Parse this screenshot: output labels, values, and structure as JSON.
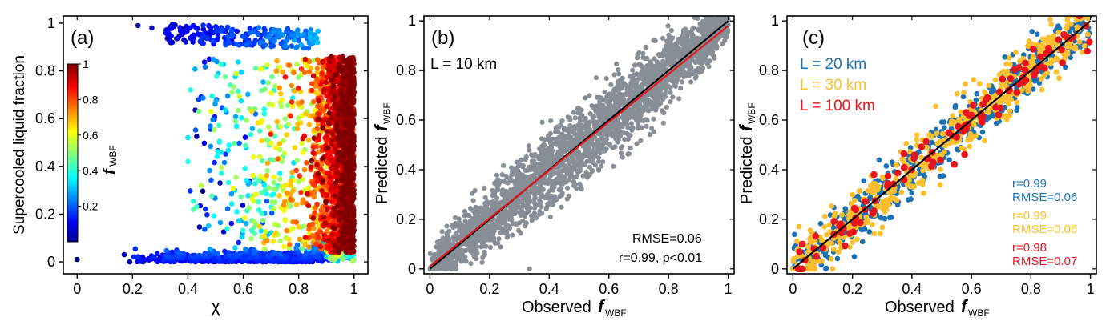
{
  "chart_data": [
    {
      "type": "scatter",
      "panel_label": "(a)",
      "xlabel": "χ",
      "ylabel": "Supercooled liquid fraction",
      "xlim": [
        -0.05,
        1.05
      ],
      "ylim": [
        -0.05,
        1.03
      ],
      "xticks": [
        "0",
        "0.2",
        "0.4",
        "0.6",
        "0.8",
        "1"
      ],
      "yticks": [
        "0",
        "0.2",
        "0.4",
        "0.6",
        "0.8",
        "1"
      ],
      "color_variable": "f_WBF",
      "colorbar": {
        "label": "f",
        "label_sub": "WBF",
        "ticks": [
          "0.2",
          "0.4",
          "0.6",
          "0.8",
          "1"
        ],
        "range": [
          0,
          1
        ],
        "colormap": "jet"
      },
      "point_count_approx": 6000,
      "description_points": [
        {
          "x": 0.0,
          "y": 0.01,
          "c": 0.0
        },
        {
          "x": 0.2,
          "y": 0.0,
          "c": 0.05
        },
        {
          "x": 0.33,
          "y": 1.0,
          "c": 0.05
        },
        {
          "x": 0.4,
          "y": 0.52,
          "c": 0.4
        },
        {
          "x": 0.5,
          "y": 0.99,
          "c": 0.1
        },
        {
          "x": 0.6,
          "y": 0.3,
          "c": 0.5
        },
        {
          "x": 0.8,
          "y": 0.6,
          "c": 0.85
        },
        {
          "x": 0.95,
          "y": 0.7,
          "c": 0.95
        },
        {
          "x": 1.0,
          "y": 0.4,
          "c": 1.0
        }
      ]
    },
    {
      "type": "scatter",
      "panel_label": "(b)",
      "annotation": "L = 10 km",
      "xlabel": "Observed",
      "ylabel": "Predicted",
      "label_symbol": "f",
      "label_sub": "WBF",
      "xlim": [
        -0.02,
        1.02
      ],
      "ylim": [
        -0.02,
        1.02
      ],
      "xticks": [
        "0",
        "0.2",
        "0.4",
        "0.6",
        "0.8",
        "1"
      ],
      "yticks": [
        "0",
        "0.2",
        "0.4",
        "0.6",
        "0.8",
        "1"
      ],
      "series": [
        {
          "color": "#888e96",
          "x_range": [
            0,
            1
          ],
          "spread_sd": 0.065
        }
      ],
      "lines": [
        {
          "name": "1:1",
          "color": "#000000",
          "x": [
            0,
            1
          ],
          "y": [
            0,
            1
          ]
        },
        {
          "name": "fit",
          "color": "#e8141b",
          "x": [
            0,
            1
          ],
          "y": [
            0.01,
            0.98
          ]
        }
      ],
      "stats": [
        "RMSE=0.06",
        "r=0.99, p<0.01"
      ]
    },
    {
      "type": "scatter",
      "panel_label": "(c)",
      "xlabel": "Observed",
      "ylabel": "Predicted",
      "label_symbol": "f",
      "label_sub": "WBF",
      "xlim": [
        -0.02,
        1.02
      ],
      "ylim": [
        -0.02,
        1.02
      ],
      "xticks": [
        "0",
        "0.2",
        "0.4",
        "0.6",
        "0.8",
        "1"
      ],
      "yticks": [
        "0",
        "0.2",
        "0.4",
        "0.6",
        "0.8",
        "1"
      ],
      "series": [
        {
          "name": "L = 20 km",
          "color": "#1a72b4",
          "r": "r=0.99",
          "rmse": "RMSE=0.06",
          "spread_sd": 0.055
        },
        {
          "name": "L = 30 km",
          "color": "#fcc02e",
          "r": "r=0.99",
          "rmse": "RMSE=0.06",
          "spread_sd": 0.055
        },
        {
          "name": "L = 100 km",
          "color": "#e8141b",
          "r": "r=0.98",
          "rmse": "RMSE=0.07",
          "spread_sd": 0.045
        }
      ],
      "lines": [
        {
          "name": "1:1",
          "color": "#000000",
          "x": [
            0,
            1
          ],
          "y": [
            0,
            1
          ]
        }
      ]
    }
  ]
}
